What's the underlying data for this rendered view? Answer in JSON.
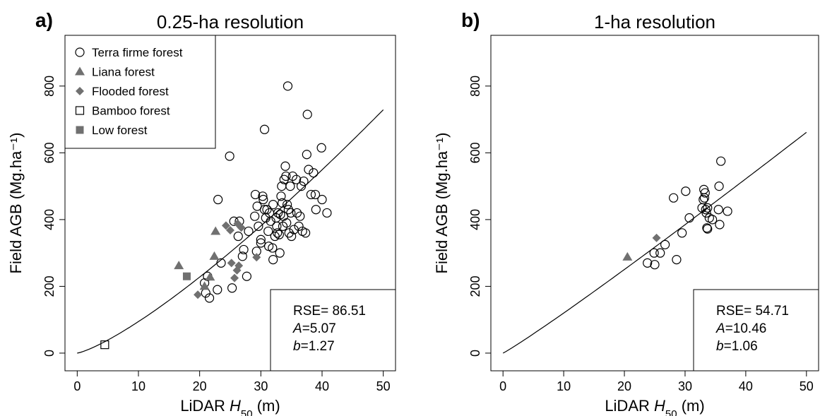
{
  "chart_data": [
    {
      "type": "scatter",
      "panel_label": "a)",
      "title": "0.25-ha resolution",
      "x_label": [
        "LiDAR ",
        "H",
        "50",
        " (m)"
      ],
      "y_label": "Field AGB (Mg.ha⁻¹)",
      "xlim": [
        -2,
        52
      ],
      "ylim": [
        -53,
        952
      ],
      "xticks": [
        0,
        10,
        20,
        30,
        40,
        50
      ],
      "yticks": [
        0,
        200,
        400,
        600,
        800
      ],
      "legend": "top-left",
      "annotations": [
        {
          "name": "RSE",
          "sep": "= ",
          "value": 86.51,
          "italic": false
        },
        {
          "name": "A",
          "sep": "=",
          "value": 5.07,
          "italic": true
        },
        {
          "name": "b",
          "sep": "=",
          "value": 1.27,
          "italic": true
        }
      ],
      "series": [
        {
          "name": "Terra firme forest",
          "marker": "circle",
          "color": "#000000",
          "filled": false,
          "x": [
            20.8,
            21,
            21.6,
            21.3,
            22.9,
            23,
            23.5,
            24.9,
            25.3,
            25.6,
            26.5,
            26.3,
            27,
            27.2,
            27.7,
            28,
            29,
            29.1,
            29.4,
            29.6,
            29.3,
            30,
            30,
            30.3,
            30.6,
            30.4,
            30.6,
            30.8,
            31,
            31.2,
            31.3,
            31.4,
            31.6,
            31.9,
            32,
            32,
            32.3,
            32.5,
            32.6,
            32.7,
            33,
            33.1,
            33.3,
            33.4,
            33.5,
            33.6,
            33.7,
            33.8,
            34,
            34.1,
            34.2,
            34.4,
            34.5,
            34.6,
            34.8,
            34.9,
            35,
            35.2,
            35.4,
            35.8,
            35.9,
            36.2,
            36.4,
            36.6,
            36.8,
            37,
            37.3,
            37.6,
            37.5,
            37.8,
            38.2,
            38.6,
            38.9,
            39,
            39.9,
            40,
            40.8,
            33.2,
            32.8,
            34.3
          ],
          "values": [
            210,
            180,
            165,
            230,
            190,
            460,
            270,
            590,
            195,
            395,
            395,
            350,
            290,
            310,
            230,
            365,
            410,
            475,
            440,
            380,
            305,
            340,
            330,
            470,
            670,
            460,
            430,
            405,
            430,
            365,
            320,
            420,
            395,
            315,
            445,
            280,
            350,
            405,
            380,
            360,
            355,
            300,
            470,
            500,
            450,
            380,
            410,
            520,
            560,
            530,
            390,
            800,
            430,
            360,
            500,
            420,
            350,
            530,
            370,
            520,
            420,
            380,
            410,
            500,
            365,
            515,
            360,
            715,
            595,
            550,
            475,
            540,
            475,
            430,
            615,
            460,
            420,
            415,
            420,
            445
          ]
        },
        {
          "name": "Liana forest",
          "marker": "triangle",
          "color": "#707070",
          "filled": true,
          "x": [
            16.6,
            22.6,
            22.4,
            20.8,
            21.7
          ],
          "values": [
            262,
            365,
            290,
            200,
            228
          ]
        },
        {
          "name": "Flooded forest",
          "marker": "diamond",
          "color": "#707070",
          "filled": true,
          "x": [
            19.7,
            24.3,
            25,
            26.2,
            26.8,
            25.2,
            25.7,
            26.1,
            26.4,
            29.3
          ],
          "values": [
            175,
            382,
            368,
            388,
            376,
            270,
            225,
            248,
            262,
            287
          ]
        },
        {
          "name": "Bamboo forest",
          "marker": "square",
          "color": "#000000",
          "filled": false,
          "x": [
            4.5
          ],
          "values": [
            25
          ]
        },
        {
          "name": "Low forest",
          "marker": "square",
          "color": "#707070",
          "filled": true,
          "x": [
            17.9
          ],
          "values": [
            230
          ]
        }
      ]
    },
    {
      "type": "scatter",
      "panel_label": "b)",
      "title": "1-ha resolution",
      "x_label": [
        "LiDAR ",
        "H",
        "50",
        " (m)"
      ],
      "y_label": "Field AGB (Mg.ha⁻¹)",
      "xlim": [
        -2,
        52
      ],
      "ylim": [
        -53,
        952
      ],
      "xticks": [
        0,
        10,
        20,
        30,
        40,
        50
      ],
      "yticks": [
        0,
        200,
        400,
        600,
        800
      ],
      "annotations": [
        {
          "name": "RSE",
          "sep": "= ",
          "value": 54.71,
          "italic": false
        },
        {
          "name": "A",
          "sep": "=",
          "value": 10.46,
          "italic": true
        },
        {
          "name": "b",
          "sep": "=",
          "value": 1.06,
          "italic": true
        }
      ],
      "series": [
        {
          "name": "Terra firme forest",
          "marker": "circle",
          "color": "#000000",
          "filled": false,
          "x": [
            23.8,
            24.9,
            25,
            25.9,
            26.7,
            28.1,
            28.6,
            29.5,
            30.1,
            30.7,
            32.8,
            33,
            33.1,
            33.3,
            33.2,
            33.4,
            33.5,
            33.7,
            33.6,
            33.7,
            34,
            34.5,
            35.5,
            35.6,
            35.7,
            35.9,
            37
          ],
          "values": [
            270,
            300,
            265,
            300,
            325,
            465,
            280,
            360,
            485,
            405,
            435,
            460,
            490,
            480,
            465,
            430,
            420,
            435,
            375,
            372,
            405,
            400,
            430,
            500,
            385,
            575,
            425
          ]
        },
        {
          "name": "Liana forest",
          "marker": "triangle",
          "color": "#707070",
          "filled": true,
          "x": [
            20.5
          ],
          "values": [
            288
          ]
        },
        {
          "name": "Flooded forest",
          "marker": "diamond",
          "color": "#707070",
          "filled": true,
          "x": [
            25.3
          ],
          "values": [
            345
          ]
        }
      ]
    }
  ]
}
